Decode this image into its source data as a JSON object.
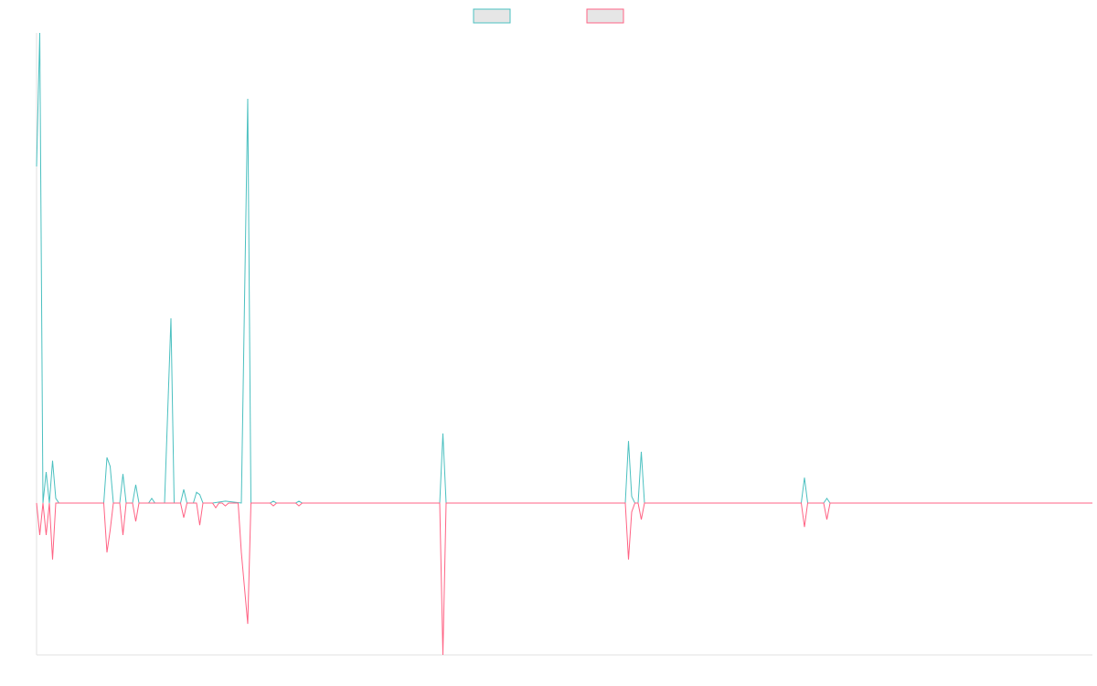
{
  "chart_data": {
    "type": "line",
    "xlim": [
      0,
      330
    ],
    "ylim": [
      -32.3,
      100
    ],
    "series": [
      {
        "color": "#4bc0c0",
        "x": [
          0,
          1,
          2,
          3,
          4,
          5,
          6,
          7,
          21,
          22,
          23,
          24,
          26,
          27,
          28,
          30,
          31,
          32,
          35,
          36,
          37,
          40,
          42,
          43,
          45,
          46,
          47,
          49,
          50,
          51,
          52,
          55,
          59,
          64,
          66,
          67,
          73,
          74,
          75,
          81,
          82,
          83,
          126,
          127,
          128,
          184,
          185,
          186,
          187,
          188,
          189,
          190,
          239,
          240,
          241,
          246,
          247,
          248,
          330
        ],
        "values": [
          71.6,
          100,
          0,
          6.6,
          0,
          9,
          1,
          0,
          0,
          9.7,
          7.8,
          0,
          0,
          6.2,
          0,
          0,
          3.9,
          0,
          0,
          1,
          0,
          0,
          39.3,
          0,
          0,
          2.9,
          0,
          0,
          2.3,
          1.8,
          0,
          0,
          0.4,
          0,
          86,
          0,
          0,
          0.4,
          0,
          0,
          0.4,
          0,
          0,
          14.8,
          0,
          0,
          13.2,
          1.4,
          0,
          0,
          10.9,
          0,
          0,
          5.4,
          0,
          0,
          1,
          0,
          0
        ]
      },
      {
        "color": "#ff6384",
        "x": [
          0,
          1,
          2,
          3,
          4,
          5,
          6,
          21,
          22,
          23,
          24,
          26,
          27,
          28,
          30,
          31,
          32,
          45,
          46,
          47,
          50,
          51,
          52,
          55,
          56,
          57,
          58,
          59,
          60,
          63,
          64,
          66,
          67,
          73,
          74,
          75,
          81,
          82,
          83,
          126,
          127,
          128,
          184,
          185,
          186,
          187,
          188,
          189,
          190,
          239,
          240,
          241,
          246,
          247,
          248,
          330
        ],
        "values": [
          0,
          -6.8,
          0,
          -6.8,
          0,
          -12,
          0,
          0,
          -10.5,
          -5.8,
          0,
          0,
          -6.8,
          0,
          0,
          -3.9,
          0,
          0,
          -3.1,
          0,
          0,
          -4.7,
          0,
          0,
          -1,
          0,
          0,
          -0.6,
          0,
          0,
          -10.5,
          -25.7,
          0,
          0,
          -0.6,
          0,
          0,
          -0.6,
          0,
          0,
          -32.3,
          0,
          0,
          -12,
          -1.9,
          0,
          0,
          -3.5,
          0,
          0,
          -5.1,
          0,
          0,
          -3.5,
          0,
          0
        ]
      }
    ]
  }
}
